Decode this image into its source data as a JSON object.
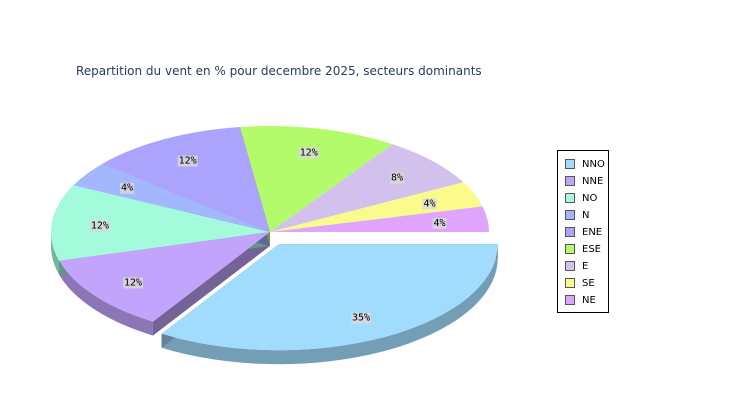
{
  "chart_data": {
    "type": "pie",
    "title": "Repartition du vent en % pour decembre 2025, secteurs dominants",
    "legend_position": "right",
    "slices": [
      {
        "name": "NNO",
        "value": 35,
        "label": "35%",
        "color": "#a1dbfd",
        "exploded": true
      },
      {
        "name": "NNE",
        "value": 12,
        "label": "12%",
        "color": "#c3a4fc"
      },
      {
        "name": "NO",
        "value": 12,
        "label": "12%",
        "color": "#a3fbdc"
      },
      {
        "name": "N",
        "value": 4,
        "label": "4%",
        "color": "#a4b6fd"
      },
      {
        "name": "ENE",
        "value": 12,
        "label": "12%",
        "color": "#aca4fc"
      },
      {
        "name": "ESE",
        "value": 12,
        "label": "12%",
        "color": "#b4fb6c"
      },
      {
        "name": "E",
        "value": 8,
        "label": "8%",
        "color": "#d2c1ec"
      },
      {
        "name": "SE",
        "value": 4,
        "label": "4%",
        "color": "#fbfb8c"
      },
      {
        "name": "NE",
        "value": 4,
        "label": "4%",
        "color": "#dfa5fc"
      }
    ]
  }
}
